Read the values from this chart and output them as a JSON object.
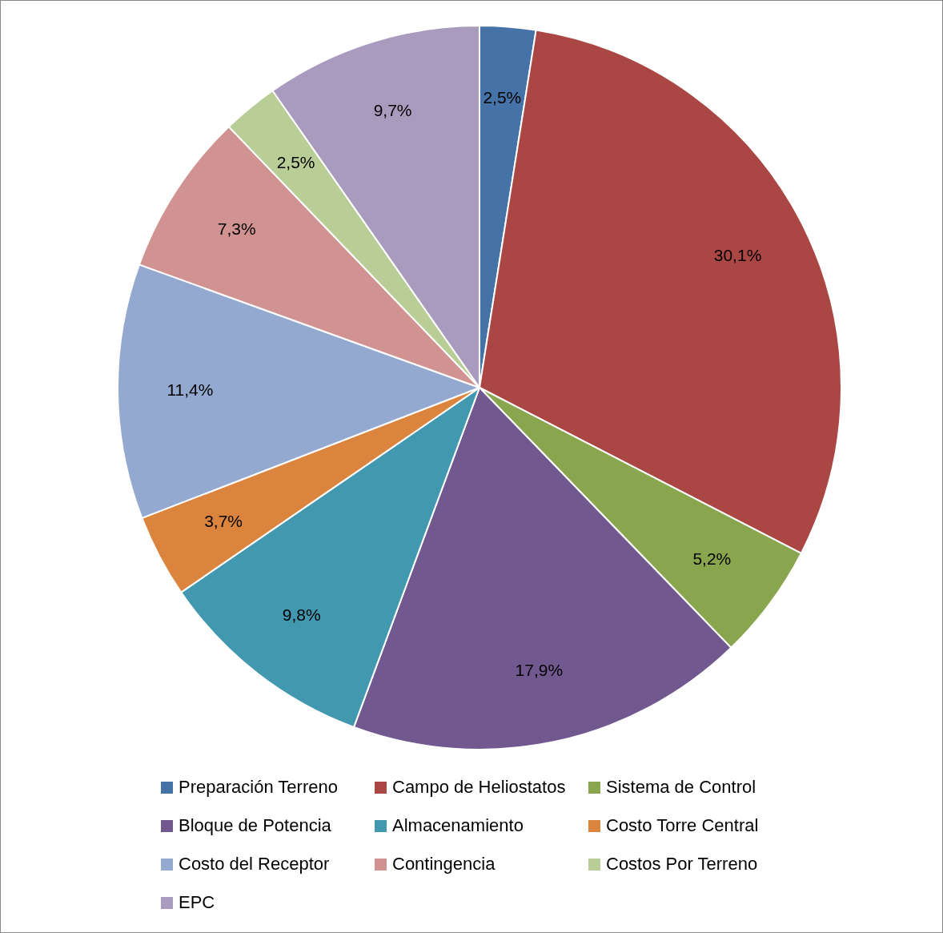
{
  "chart_data": {
    "type": "pie",
    "categories": [
      "Preparación Terreno",
      "Campo de Heliostatos",
      "Sistema de Control",
      "Bloque de Potencia",
      "Almacenamiento",
      "Costo Torre Central",
      "Costo del Receptor",
      "Contingencia",
      "Costos Por Terreno",
      "EPC"
    ],
    "values": [
      2.5,
      30.1,
      5.2,
      17.9,
      9.8,
      3.7,
      11.4,
      7.3,
      2.5,
      9.7
    ],
    "colors": [
      "#4572a7",
      "#aa4643",
      "#89a54e",
      "#71588f",
      "#4198af",
      "#db843d",
      "#93a9cf",
      "#d19392",
      "#b9cd96",
      "#a99bbd"
    ],
    "value_labels": [
      "2,5%",
      "30,1%",
      "5,2%",
      "17,9%",
      "9,8%",
      "3,7%",
      "11,4%",
      "7,3%",
      "2,5%",
      "9,7%"
    ],
    "legend": "bottom"
  }
}
